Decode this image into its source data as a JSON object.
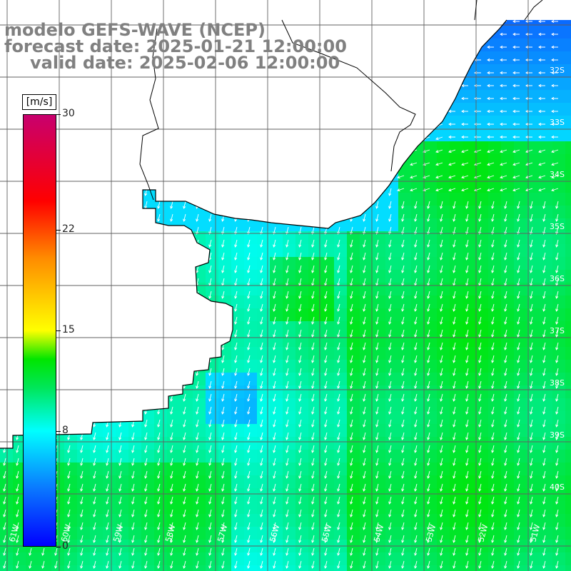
{
  "title": {
    "line1": "modelo GEFS-WAVE (NCEP)",
    "line2": "forecast date: 2025-01-21 12:00:00",
    "line3": "valid date: 2025-02-06 12:00:00"
  },
  "colorbar": {
    "unit": "[m/s]",
    "min": 0,
    "max": 30,
    "tick_labels": [
      "30",
      "22",
      "15",
      "8",
      "0"
    ],
    "tick_values": [
      30,
      22,
      15,
      8,
      0
    ],
    "colors": [
      "#0000ff",
      "#0a78ff",
      "#00ffff",
      "#00e65a",
      "#00e600",
      "#ffff00",
      "#ff8c00",
      "#ff0000",
      "#c8006e"
    ],
    "color_stops": [
      0,
      4,
      8,
      11,
      13,
      15,
      20,
      24,
      30
    ]
  },
  "map": {
    "lon_range": [
      -62,
      -51
    ],
    "lat_range": [
      -41,
      -30
    ],
    "lat_labels": [
      "32S",
      "33S",
      "34S",
      "35S",
      "36S",
      "37S",
      "38S",
      "39S",
      "40S"
    ],
    "lon_labels": [
      "61W",
      "60W",
      "59W",
      "58W",
      "57W",
      "56W",
      "55W",
      "54W",
      "53W",
      "52W",
      "51W"
    ],
    "graticule_color": "#606060",
    "coast_color": "#000000",
    "arrow_color": "#ffffff"
  }
}
